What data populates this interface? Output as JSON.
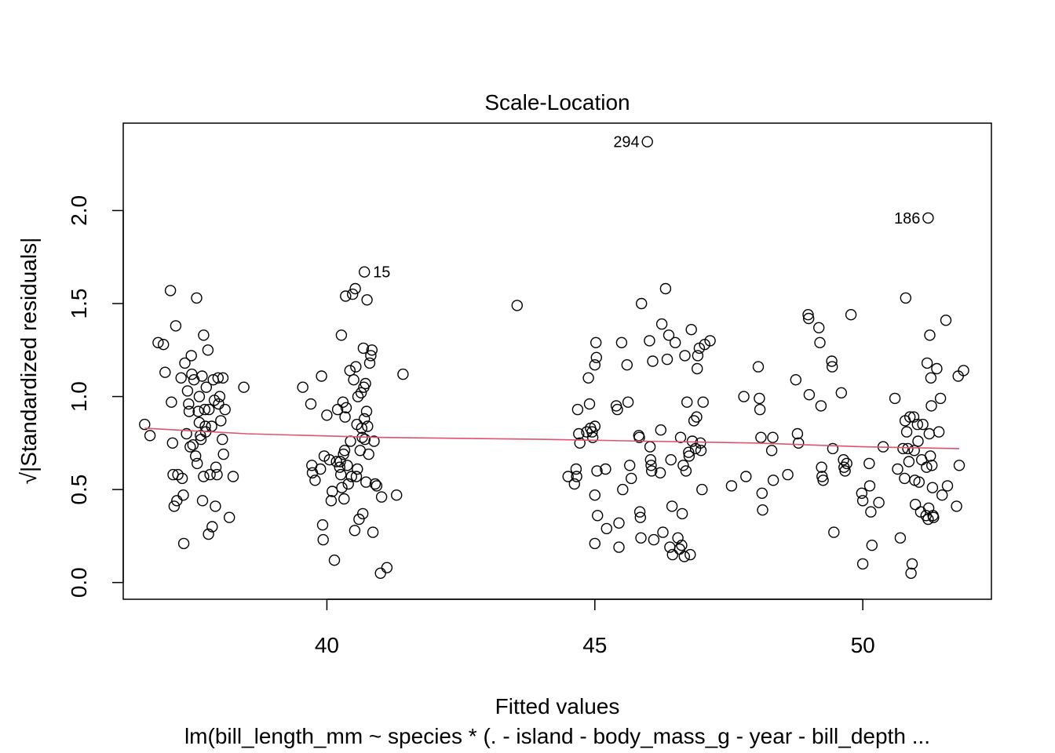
{
  "chart_data": {
    "type": "scatter",
    "title": "Scale-Location",
    "xlabel": "Fitted values",
    "ylabel": "√|Standardized residuals|",
    "subtitle": "lm(bill_length_mm ~ species * (. - island - body_mass_g - year - bill_depth ...",
    "xlim": [
      36.2,
      52.4
    ],
    "ylim": [
      -0.09,
      2.47
    ],
    "xticks": [
      40,
      45,
      50
    ],
    "yticks": [
      0.0,
      0.5,
      1.0,
      1.5,
      2.0
    ],
    "xtick_labels": [
      "40",
      "45",
      "50"
    ],
    "ytick_labels": [
      "0.0",
      "0.5",
      "1.0",
      "1.5",
      "2.0"
    ],
    "grid": false,
    "smooth_color": "#DF536B",
    "point_color": "#000000",
    "smooth_line": [
      [
        36.6,
        0.83
      ],
      [
        38.5,
        0.8
      ],
      [
        41,
        0.78
      ],
      [
        44,
        0.77
      ],
      [
        46,
        0.76
      ],
      [
        48,
        0.75
      ],
      [
        50,
        0.73
      ],
      [
        51.8,
        0.72
      ]
    ],
    "labeled_points": [
      {
        "label": "294",
        "x": 45.98,
        "y": 2.37
      },
      {
        "label": "186",
        "x": 51.22,
        "y": 1.96
      },
      {
        "label": "15",
        "x": 40.7,
        "y": 1.67
      }
    ],
    "points": [
      [
        36.6,
        0.85
      ],
      [
        36.7,
        0.79
      ],
      [
        36.85,
        1.29
      ],
      [
        36.95,
        1.28
      ],
      [
        36.98,
        1.13
      ],
      [
        37.08,
        1.57
      ],
      [
        37.1,
        0.97
      ],
      [
        37.12,
        0.75
      ],
      [
        37.13,
        0.58
      ],
      [
        37.15,
        0.41
      ],
      [
        37.18,
        1.38
      ],
      [
        37.2,
        0.44
      ],
      [
        37.22,
        0.58
      ],
      [
        37.28,
        1.1
      ],
      [
        37.3,
        0.56
      ],
      [
        37.32,
        0.47
      ],
      [
        37.33,
        0.21
      ],
      [
        37.35,
        1.18
      ],
      [
        37.38,
        0.8
      ],
      [
        37.4,
        1.03
      ],
      [
        37.42,
        0.96
      ],
      [
        37.43,
        0.92
      ],
      [
        37.45,
        0.73
      ],
      [
        37.47,
        1.22
      ],
      [
        37.48,
        1.12
      ],
      [
        37.5,
        0.74
      ],
      [
        37.52,
        1.09
      ],
      [
        37.55,
        0.68
      ],
      [
        37.57,
        1.53
      ],
      [
        37.58,
        0.64
      ],
      [
        37.6,
        0.92
      ],
      [
        37.62,
        1.0
      ],
      [
        37.62,
        0.86
      ],
      [
        37.64,
        0.79
      ],
      [
        37.65,
        0.77
      ],
      [
        37.67,
        1.11
      ],
      [
        37.68,
        0.44
      ],
      [
        37.7,
        1.33
      ],
      [
        37.7,
        0.57
      ],
      [
        37.72,
        0.93
      ],
      [
        37.73,
        0.84
      ],
      [
        37.74,
        0.81
      ],
      [
        37.75,
        1.05
      ],
      [
        37.78,
        1.25
      ],
      [
        37.79,
        0.26
      ],
      [
        37.8,
        0.93
      ],
      [
        37.82,
        0.58
      ],
      [
        37.85,
        0.84
      ],
      [
        37.86,
        0.3
      ],
      [
        37.88,
        1.09
      ],
      [
        37.9,
        0.98
      ],
      [
        37.92,
        0.41
      ],
      [
        37.93,
        0.62
      ],
      [
        37.95,
        0.58
      ],
      [
        37.97,
        1.1
      ],
      [
        37.98,
        0.96
      ],
      [
        38.0,
        1.0
      ],
      [
        38.02,
        0.87
      ],
      [
        38.05,
        0.77
      ],
      [
        38.06,
        1.1
      ],
      [
        38.07,
        0.69
      ],
      [
        38.1,
        0.93
      ],
      [
        38.18,
        0.35
      ],
      [
        38.25,
        0.57
      ],
      [
        38.45,
        1.05
      ],
      [
        39.55,
        1.05
      ],
      [
        39.7,
        0.96
      ],
      [
        39.72,
        0.63
      ],
      [
        39.73,
        0.59
      ],
      [
        39.78,
        0.55
      ],
      [
        39.88,
        0.61
      ],
      [
        39.9,
        1.11
      ],
      [
        39.92,
        0.31
      ],
      [
        39.93,
        0.23
      ],
      [
        39.95,
        0.68
      ],
      [
        40.0,
        0.9
      ],
      [
        40.05,
        0.66
      ],
      [
        40.08,
        0.44
      ],
      [
        40.1,
        0.49
      ],
      [
        40.14,
        0.12
      ],
      [
        40.18,
        0.65
      ],
      [
        40.2,
        0.93
      ],
      [
        40.24,
        0.62
      ],
      [
        40.25,
        0.65
      ],
      [
        40.26,
        0.58
      ],
      [
        40.27,
        1.33
      ],
      [
        40.28,
        0.51
      ],
      [
        40.3,
        0.97
      ],
      [
        40.31,
        0.69
      ],
      [
        40.32,
        0.45
      ],
      [
        40.33,
        0.71
      ],
      [
        40.34,
        0.89
      ],
      [
        40.35,
        1.54
      ],
      [
        40.36,
        0.94
      ],
      [
        40.38,
        0.63
      ],
      [
        40.4,
        0.53
      ],
      [
        40.43,
        1.14
      ],
      [
        40.44,
        0.76
      ],
      [
        40.46,
        0.57
      ],
      [
        40.48,
        1.55
      ],
      [
        40.5,
        1.09
      ],
      [
        40.52,
        0.28
      ],
      [
        40.53,
        1.58
      ],
      [
        40.54,
        1.16
      ],
      [
        40.55,
        0.57
      ],
      [
        40.56,
        0.85
      ],
      [
        40.57,
        0.61
      ],
      [
        40.58,
        1.0
      ],
      [
        40.6,
        0.34
      ],
      [
        40.62,
        0.71
      ],
      [
        40.64,
        1.02
      ],
      [
        40.65,
        0.83
      ],
      [
        40.66,
        0.78
      ],
      [
        40.67,
        0.37
      ],
      [
        40.68,
        1.26
      ],
      [
        40.69,
        1.05
      ],
      [
        40.7,
        0.88
      ],
      [
        40.71,
        0.77
      ],
      [
        40.72,
        1.07
      ],
      [
        40.73,
        0.54
      ],
      [
        40.74,
        0.92
      ],
      [
        40.75,
        1.52
      ],
      [
        40.76,
        0.84
      ],
      [
        40.78,
        0.69
      ],
      [
        40.8,
        1.18
      ],
      [
        40.82,
        1.22
      ],
      [
        40.84,
        1.25
      ],
      [
        40.86,
        0.27
      ],
      [
        40.88,
        0.76
      ],
      [
        40.9,
        0.53
      ],
      [
        40.93,
        0.52
      ],
      [
        41.02,
        0.46
      ],
      [
        41.0,
        0.05
      ],
      [
        41.12,
        0.08
      ],
      [
        41.3,
        0.47
      ],
      [
        41.42,
        1.12
      ],
      [
        43.55,
        1.49
      ],
      [
        44.5,
        0.57
      ],
      [
        44.62,
        0.53
      ],
      [
        44.65,
        0.61
      ],
      [
        44.66,
        0.57
      ],
      [
        44.68,
        0.93
      ],
      [
        44.7,
        0.8
      ],
      [
        44.72,
        0.75
      ],
      [
        44.85,
        0.81
      ],
      [
        44.88,
        1.1
      ],
      [
        44.9,
        0.96
      ],
      [
        44.92,
        0.83
      ],
      [
        44.95,
        0.81
      ],
      [
        44.96,
        0.78
      ],
      [
        45.0,
        1.17
      ],
      [
        45.0,
        0.84
      ],
      [
        45.0,
        0.47
      ],
      [
        45.0,
        0.21
      ],
      [
        45.02,
        1.29
      ],
      [
        45.03,
        1.21
      ],
      [
        45.04,
        0.6
      ],
      [
        45.05,
        0.36
      ],
      [
        45.2,
        0.61
      ],
      [
        45.22,
        0.29
      ],
      [
        45.4,
        0.95
      ],
      [
        45.42,
        0.93
      ],
      [
        45.45,
        0.32
      ],
      [
        45.45,
        0.19
      ],
      [
        45.5,
        1.29
      ],
      [
        45.52,
        0.5
      ],
      [
        45.6,
        1.17
      ],
      [
        45.62,
        0.97
      ],
      [
        45.65,
        0.63
      ],
      [
        45.68,
        0.56
      ],
      [
        45.82,
        0.79
      ],
      [
        45.83,
        0.78
      ],
      [
        45.84,
        0.38
      ],
      [
        45.85,
        0.35
      ],
      [
        45.86,
        0.24
      ],
      [
        45.87,
        1.5
      ],
      [
        46.02,
        1.3
      ],
      [
        46.03,
        0.73
      ],
      [
        46.04,
        0.66
      ],
      [
        46.05,
        0.63
      ],
      [
        46.06,
        0.6
      ],
      [
        46.08,
        1.19
      ],
      [
        46.1,
        0.23
      ],
      [
        46.22,
        0.59
      ],
      [
        46.23,
        0.82
      ],
      [
        46.25,
        1.39
      ],
      [
        46.27,
        0.27
      ],
      [
        46.32,
        1.58
      ],
      [
        46.35,
        1.2
      ],
      [
        46.38,
        1.33
      ],
      [
        46.4,
        0.19
      ],
      [
        46.42,
        0.66
      ],
      [
        46.44,
        0.41
      ],
      [
        46.45,
        0.15
      ],
      [
        46.5,
        1.29
      ],
      [
        46.55,
        0.24
      ],
      [
        46.58,
        0.18
      ],
      [
        46.6,
        0.78
      ],
      [
        46.62,
        0.2
      ],
      [
        46.63,
        0.37
      ],
      [
        46.65,
        0.63
      ],
      [
        46.67,
        0.14
      ],
      [
        46.68,
        1.22
      ],
      [
        46.7,
        0.6
      ],
      [
        46.72,
        0.97
      ],
      [
        46.75,
        0.7
      ],
      [
        46.76,
        0.68
      ],
      [
        46.78,
        0.15
      ],
      [
        46.8,
        1.36
      ],
      [
        46.82,
        0.76
      ],
      [
        46.85,
        0.87
      ],
      [
        46.88,
        0.72
      ],
      [
        46.9,
        0.89
      ],
      [
        46.91,
        1.15
      ],
      [
        46.92,
        1.22
      ],
      [
        46.95,
        1.26
      ],
      [
        46.97,
        0.75
      ],
      [
        46.98,
        0.71
      ],
      [
        47.0,
        0.5
      ],
      [
        47.02,
        0.97
      ],
      [
        47.05,
        1.28
      ],
      [
        47.15,
        1.3
      ],
      [
        47.55,
        0.52
      ],
      [
        47.78,
        1.0
      ],
      [
        47.82,
        0.57
      ],
      [
        48.05,
        1.16
      ],
      [
        48.07,
        0.99
      ],
      [
        48.08,
        0.93
      ],
      [
        48.1,
        0.78
      ],
      [
        48.12,
        0.48
      ],
      [
        48.13,
        0.39
      ],
      [
        48.3,
        0.71
      ],
      [
        48.32,
        0.78
      ],
      [
        48.33,
        0.55
      ],
      [
        48.6,
        0.58
      ],
      [
        48.75,
        1.09
      ],
      [
        48.78,
        0.8
      ],
      [
        48.8,
        0.75
      ],
      [
        48.98,
        1.44
      ],
      [
        48.99,
        1.42
      ],
      [
        49.0,
        1.01
      ],
      [
        49.18,
        1.37
      ],
      [
        49.2,
        1.29
      ],
      [
        49.22,
        0.95
      ],
      [
        49.23,
        0.62
      ],
      [
        49.24,
        0.57
      ],
      [
        49.26,
        0.55
      ],
      [
        49.42,
        1.19
      ],
      [
        49.43,
        1.16
      ],
      [
        49.44,
        0.72
      ],
      [
        49.46,
        0.27
      ],
      [
        49.6,
        1.02
      ],
      [
        49.64,
        0.66
      ],
      [
        49.65,
        0.62
      ],
      [
        49.67,
        0.6
      ],
      [
        49.7,
        0.64
      ],
      [
        49.78,
        1.44
      ],
      [
        49.98,
        0.48
      ],
      [
        50.0,
        0.44
      ],
      [
        50.0,
        0.1
      ],
      [
        50.12,
        0.64
      ],
      [
        50.13,
        0.52
      ],
      [
        50.15,
        0.38
      ],
      [
        50.17,
        0.2
      ],
      [
        50.3,
        0.43
      ],
      [
        50.38,
        0.73
      ],
      [
        50.6,
        0.99
      ],
      [
        50.65,
        0.61
      ],
      [
        50.7,
        0.24
      ],
      [
        50.75,
        0.72
      ],
      [
        50.78,
        0.56
      ],
      [
        50.79,
        0.87
      ],
      [
        50.8,
        1.53
      ],
      [
        50.82,
        0.81
      ],
      [
        50.84,
        0.72
      ],
      [
        50.86,
        0.65
      ],
      [
        50.88,
        0.89
      ],
      [
        50.9,
        0.05
      ],
      [
        50.92,
        0.1
      ],
      [
        50.95,
        0.89
      ],
      [
        50.96,
        0.71
      ],
      [
        50.97,
        0.55
      ],
      [
        50.98,
        0.42
      ],
      [
        51.02,
        0.85
      ],
      [
        51.03,
        0.76
      ],
      [
        51.05,
        0.54
      ],
      [
        51.08,
        0.38
      ],
      [
        51.1,
        0.66
      ],
      [
        51.12,
        0.85
      ],
      [
        51.18,
        0.36
      ],
      [
        51.19,
        0.62
      ],
      [
        51.2,
        1.18
      ],
      [
        51.22,
        0.34
      ],
      [
        51.23,
        0.4
      ],
      [
        51.24,
        0.8
      ],
      [
        51.25,
        1.33
      ],
      [
        51.26,
        0.68
      ],
      [
        51.27,
        1.1
      ],
      [
        51.28,
        0.95
      ],
      [
        51.29,
        0.63
      ],
      [
        51.3,
        0.51
      ],
      [
        51.31,
        0.36
      ],
      [
        51.32,
        0.35
      ],
      [
        51.38,
        1.15
      ],
      [
        51.42,
        0.81
      ],
      [
        51.45,
        0.99
      ],
      [
        51.48,
        0.47
      ],
      [
        51.55,
        1.41
      ],
      [
        51.58,
        0.52
      ],
      [
        51.75,
        0.41
      ],
      [
        51.78,
        1.11
      ],
      [
        51.8,
        0.63
      ],
      [
        51.88,
        1.14
      ]
    ]
  }
}
